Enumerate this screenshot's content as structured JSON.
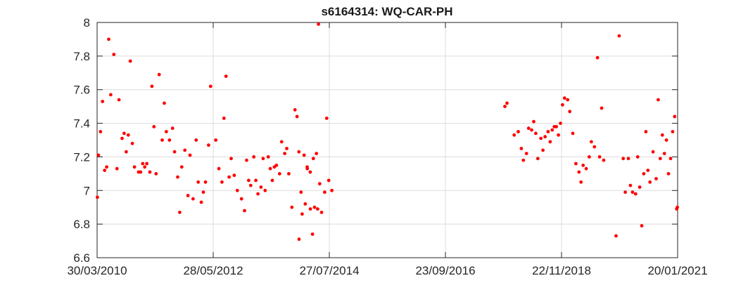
{
  "chart_data": {
    "type": "scatter",
    "title": "s6164314: WQ-CAR-PH",
    "xlabel": "",
    "ylabel": "",
    "x_axis_type": "date",
    "xlim": [
      "2010-03-30",
      "2021-01-20"
    ],
    "ylim": [
      6.6,
      8.0
    ],
    "x_ticks": [
      "30/03/2010",
      "28/05/2012",
      "27/07/2014",
      "23/09/2016",
      "22/11/2018",
      "20/01/2021"
    ],
    "y_ticks": [
      "6.6",
      "6.8",
      "7",
      "7.2",
      "7.4",
      "7.6",
      "7.8",
      "8"
    ],
    "grid": true,
    "marker_color": "#ff0000",
    "series": [
      {
        "points": [
          [
            "2010-04-01",
            6.96
          ],
          [
            "2010-04-08",
            7.21
          ],
          [
            "2010-04-22",
            7.35
          ],
          [
            "2010-05-06",
            7.53
          ],
          [
            "2010-05-20",
            7.12
          ],
          [
            "2010-06-03",
            7.14
          ],
          [
            "2010-06-17",
            7.9
          ],
          [
            "2010-07-01",
            7.57
          ],
          [
            "2010-07-22",
            7.81
          ],
          [
            "2010-08-12",
            7.13
          ],
          [
            "2010-08-26",
            7.54
          ],
          [
            "2010-09-16",
            7.31
          ],
          [
            "2010-09-30",
            7.34
          ],
          [
            "2010-10-14",
            7.23
          ],
          [
            "2010-10-28",
            7.33
          ],
          [
            "2010-11-11",
            7.77
          ],
          [
            "2010-11-25",
            7.28
          ],
          [
            "2010-12-09",
            7.14
          ],
          [
            "2011-01-06",
            7.11
          ],
          [
            "2011-01-20",
            7.11
          ],
          [
            "2011-02-03",
            7.16
          ],
          [
            "2011-02-17",
            7.14
          ],
          [
            "2011-03-03",
            7.16
          ],
          [
            "2011-03-24",
            7.11
          ],
          [
            "2011-04-07",
            7.62
          ],
          [
            "2011-04-21",
            7.38
          ],
          [
            "2011-05-05",
            7.1
          ],
          [
            "2011-05-26",
            7.69
          ],
          [
            "2011-06-16",
            7.3
          ],
          [
            "2011-06-30",
            7.52
          ],
          [
            "2011-07-14",
            7.35
          ],
          [
            "2011-08-04",
            7.3
          ],
          [
            "2011-08-25",
            7.37
          ],
          [
            "2011-09-08",
            7.23
          ],
          [
            "2011-09-29",
            7.08
          ],
          [
            "2011-10-13",
            6.87
          ],
          [
            "2011-10-27",
            7.14
          ],
          [
            "2011-11-17",
            7.24
          ],
          [
            "2011-12-08",
            6.97
          ],
          [
            "2011-12-22",
            7.21
          ],
          [
            "2012-01-12",
            6.95
          ],
          [
            "2012-02-02",
            7.3
          ],
          [
            "2012-02-16",
            7.05
          ],
          [
            "2012-03-08",
            6.93
          ],
          [
            "2012-03-22",
            6.99
          ],
          [
            "2012-04-05",
            7.05
          ],
          [
            "2012-04-26",
            7.27
          ],
          [
            "2012-05-10",
            7.62
          ],
          [
            "2012-06-14",
            7.3
          ],
          [
            "2012-07-05",
            7.13
          ],
          [
            "2012-07-26",
            7.05
          ],
          [
            "2012-08-09",
            7.43
          ],
          [
            "2012-08-23",
            7.68
          ],
          [
            "2012-09-13",
            7.08
          ],
          [
            "2012-09-27",
            7.19
          ],
          [
            "2012-10-18",
            7.09
          ],
          [
            "2012-11-08",
            7.0
          ],
          [
            "2012-12-06",
            6.95
          ],
          [
            "2012-12-27",
            6.88
          ],
          [
            "2013-01-10",
            7.18
          ],
          [
            "2013-01-24",
            7.06
          ],
          [
            "2013-02-07",
            7.03
          ],
          [
            "2013-02-28",
            7.2
          ],
          [
            "2013-03-14",
            7.06
          ],
          [
            "2013-03-28",
            6.98
          ],
          [
            "2013-04-18",
            7.02
          ],
          [
            "2013-05-02",
            7.19
          ],
          [
            "2013-05-16",
            7.0
          ],
          [
            "2013-06-06",
            7.2
          ],
          [
            "2013-06-20",
            7.13
          ],
          [
            "2013-07-04",
            7.06
          ],
          [
            "2013-07-18",
            7.14
          ],
          [
            "2013-08-01",
            7.15
          ],
          [
            "2013-08-22",
            7.1
          ],
          [
            "2013-09-05",
            7.29
          ],
          [
            "2013-09-26",
            7.22
          ],
          [
            "2013-10-10",
            7.25
          ],
          [
            "2013-10-24",
            7.1
          ],
          [
            "2013-11-14",
            6.9
          ],
          [
            "2013-12-05",
            7.48
          ],
          [
            "2013-12-19",
            7.44
          ],
          [
            "2014-01-02",
            6.71
          ],
          [
            "2014-01-23",
            6.86
          ],
          [
            "2014-02-13",
            6.92
          ],
          [
            "2014-02-27",
            7.13
          ],
          [
            "2014-03-20",
            6.89
          ],
          [
            "2014-04-03",
            6.74
          ],
          [
            "2014-04-17",
            6.9
          ],
          [
            "2014-05-08",
            6.89
          ],
          [
            "2014-05-22",
            7.04
          ],
          [
            "2014-01-01",
            7.23
          ],
          [
            "2014-01-15",
            6.99
          ],
          [
            "2014-02-05",
            7.21
          ],
          [
            "2014-02-26",
            7.14
          ],
          [
            "2014-03-19",
            7.11
          ],
          [
            "2014-04-09",
            7.19
          ],
          [
            "2014-04-30",
            7.22
          ],
          [
            "2014-05-14",
            7.99
          ],
          [
            "2014-06-04",
            6.87
          ],
          [
            "2014-06-25",
            6.99
          ],
          [
            "2014-07-09",
            7.43
          ],
          [
            "2014-07-23",
            7.06
          ],
          [
            "2014-08-13",
            7.0
          ],
          [
            "2017-11-02",
            7.5
          ],
          [
            "2017-11-16",
            7.52
          ],
          [
            "2018-01-04",
            7.33
          ],
          [
            "2018-02-01",
            7.35
          ],
          [
            "2018-02-22",
            7.25
          ],
          [
            "2018-03-08",
            7.18
          ],
          [
            "2018-03-29",
            7.22
          ],
          [
            "2018-04-12",
            7.37
          ],
          [
            "2018-05-03",
            7.36
          ],
          [
            "2018-05-17",
            7.41
          ],
          [
            "2018-05-31",
            7.34
          ],
          [
            "2018-06-14",
            7.19
          ],
          [
            "2018-07-05",
            7.31
          ],
          [
            "2018-07-19",
            7.24
          ],
          [
            "2018-08-02",
            7.32
          ],
          [
            "2018-08-23",
            7.35
          ],
          [
            "2018-09-06",
            7.29
          ],
          [
            "2018-09-20",
            7.36
          ],
          [
            "2018-10-04",
            7.38
          ],
          [
            "2018-10-18",
            7.38
          ],
          [
            "2018-11-01",
            7.33
          ],
          [
            "2018-11-15",
            7.4
          ],
          [
            "2018-11-29",
            7.51
          ],
          [
            "2018-12-13",
            7.55
          ],
          [
            "2019-01-03",
            7.54
          ],
          [
            "2019-01-17",
            7.47
          ],
          [
            "2019-02-07",
            7.34
          ],
          [
            "2019-02-28",
            7.16
          ],
          [
            "2019-03-21",
            7.11
          ],
          [
            "2019-04-04",
            7.05
          ],
          [
            "2019-04-18",
            7.15
          ],
          [
            "2019-05-09",
            7.13
          ],
          [
            "2019-05-30",
            7.2
          ],
          [
            "2019-06-13",
            7.29
          ],
          [
            "2019-07-04",
            7.26
          ],
          [
            "2019-07-25",
            7.79
          ],
          [
            "2019-08-08",
            7.2
          ],
          [
            "2019-08-22",
            7.49
          ],
          [
            "2019-09-05",
            7.18
          ],
          [
            "2019-11-28",
            6.73
          ],
          [
            "2019-12-19",
            7.92
          ],
          [
            "2020-01-16",
            7.19
          ],
          [
            "2020-01-30",
            6.99
          ],
          [
            "2020-02-20",
            7.19
          ],
          [
            "2020-03-05",
            7.03
          ],
          [
            "2020-03-19",
            6.99
          ],
          [
            "2020-04-09",
            6.98
          ],
          [
            "2020-04-23",
            7.2
          ],
          [
            "2020-05-07",
            7.02
          ],
          [
            "2020-05-21",
            6.79
          ],
          [
            "2020-06-04",
            7.1
          ],
          [
            "2020-06-18",
            7.35
          ],
          [
            "2020-07-02",
            7.12
          ],
          [
            "2020-07-16",
            7.05
          ],
          [
            "2020-08-06",
            7.23
          ],
          [
            "2020-08-27",
            7.07
          ],
          [
            "2020-09-10",
            7.54
          ],
          [
            "2020-09-24",
            7.19
          ],
          [
            "2020-10-08",
            7.33
          ],
          [
            "2020-10-22",
            7.22
          ],
          [
            "2020-11-05",
            7.3
          ],
          [
            "2020-11-19",
            7.1
          ],
          [
            "2020-12-03",
            7.19
          ],
          [
            "2020-12-17",
            7.35
          ],
          [
            "2020-12-31",
            7.44
          ],
          [
            "2021-01-14",
            6.89
          ],
          [
            "2021-01-18",
            6.9
          ]
        ]
      }
    ]
  }
}
